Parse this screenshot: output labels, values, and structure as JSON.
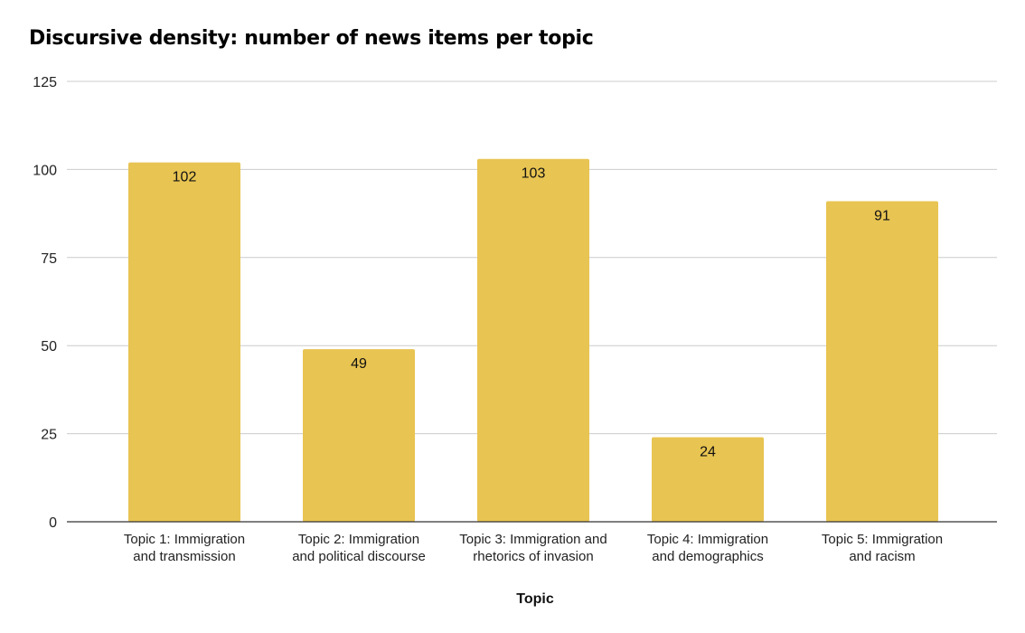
{
  "chart_data": {
    "type": "bar",
    "title": "Discursive density: number of news items per topic",
    "xlabel": "Topic",
    "ylabel": "",
    "categories": [
      "Topic 1: Immigration and transmission",
      "Topic 2: Immigration and political discourse",
      "Topic 3: Immigration and rhetorics of invasion",
      "Topic 4: Immigration and demographics",
      "Topic 5: Immigration and racism"
    ],
    "category_lines": [
      [
        "Topic 1: Immigration",
        "and transmission"
      ],
      [
        "Topic 2: Immigration",
        "and political discourse"
      ],
      [
        "Topic 3: Immigration and",
        "rhetorics of invasion"
      ],
      [
        "Topic 4: Immigration",
        "and demographics"
      ],
      [
        "Topic 5: Immigration",
        "and racism"
      ]
    ],
    "values": [
      102,
      49,
      103,
      24,
      91
    ],
    "ylim": [
      0,
      125
    ],
    "yticks": [
      0,
      25,
      50,
      75,
      100,
      125
    ],
    "grid": true,
    "legend": "none",
    "bar_color": "#E8C452",
    "grid_color": "#CCCCCC",
    "axis_color": "#333333"
  }
}
